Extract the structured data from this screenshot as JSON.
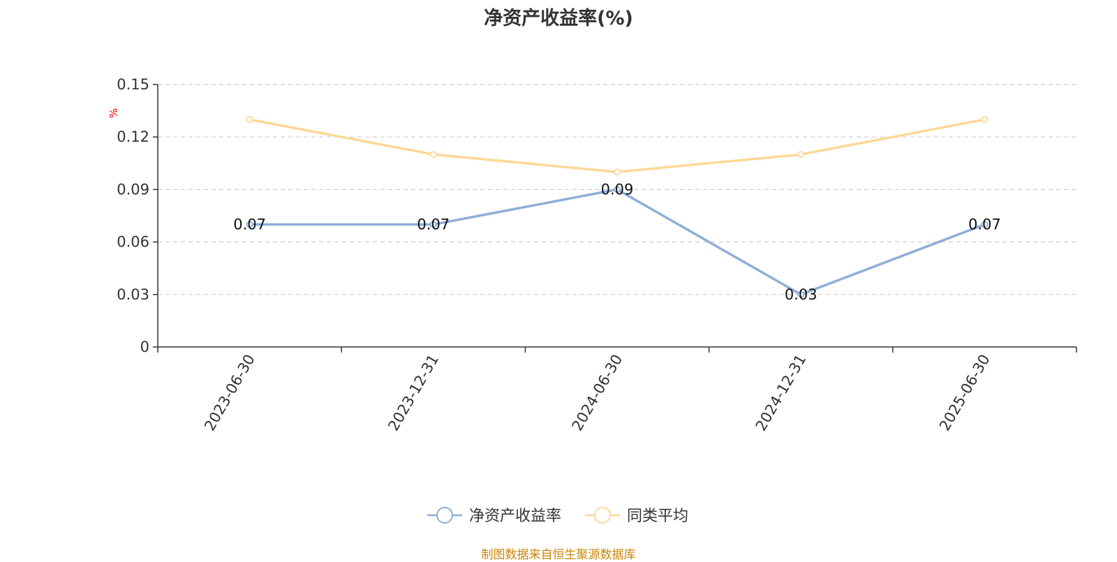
{
  "title": "净资产收益率(%)",
  "source": "制图数据来自恒生聚源数据库",
  "chart_data": {
    "type": "line",
    "title": "净资产收益率(%)",
    "ylabel": "%",
    "categories": [
      "2023-06-30",
      "2023-12-31",
      "2024-06-30",
      "2024-12-31",
      "2025-06-30"
    ],
    "y_ticks": [
      "0",
      "0.03",
      "0.06",
      "0.09",
      "0.12",
      "0.15"
    ],
    "ylim": [
      0,
      0.15
    ],
    "grid": true,
    "legend_position": "bottom-center",
    "series": [
      {
        "name": "净资产收益率",
        "values": [
          0.07,
          0.07,
          0.09,
          0.03,
          0.07
        ],
        "color": "#8eaed8",
        "show_labels": true
      },
      {
        "name": "同类平均",
        "values": [
          0.13,
          0.11,
          0.1,
          0.11,
          0.13
        ],
        "color": "#fcd898",
        "show_labels": false
      }
    ]
  }
}
